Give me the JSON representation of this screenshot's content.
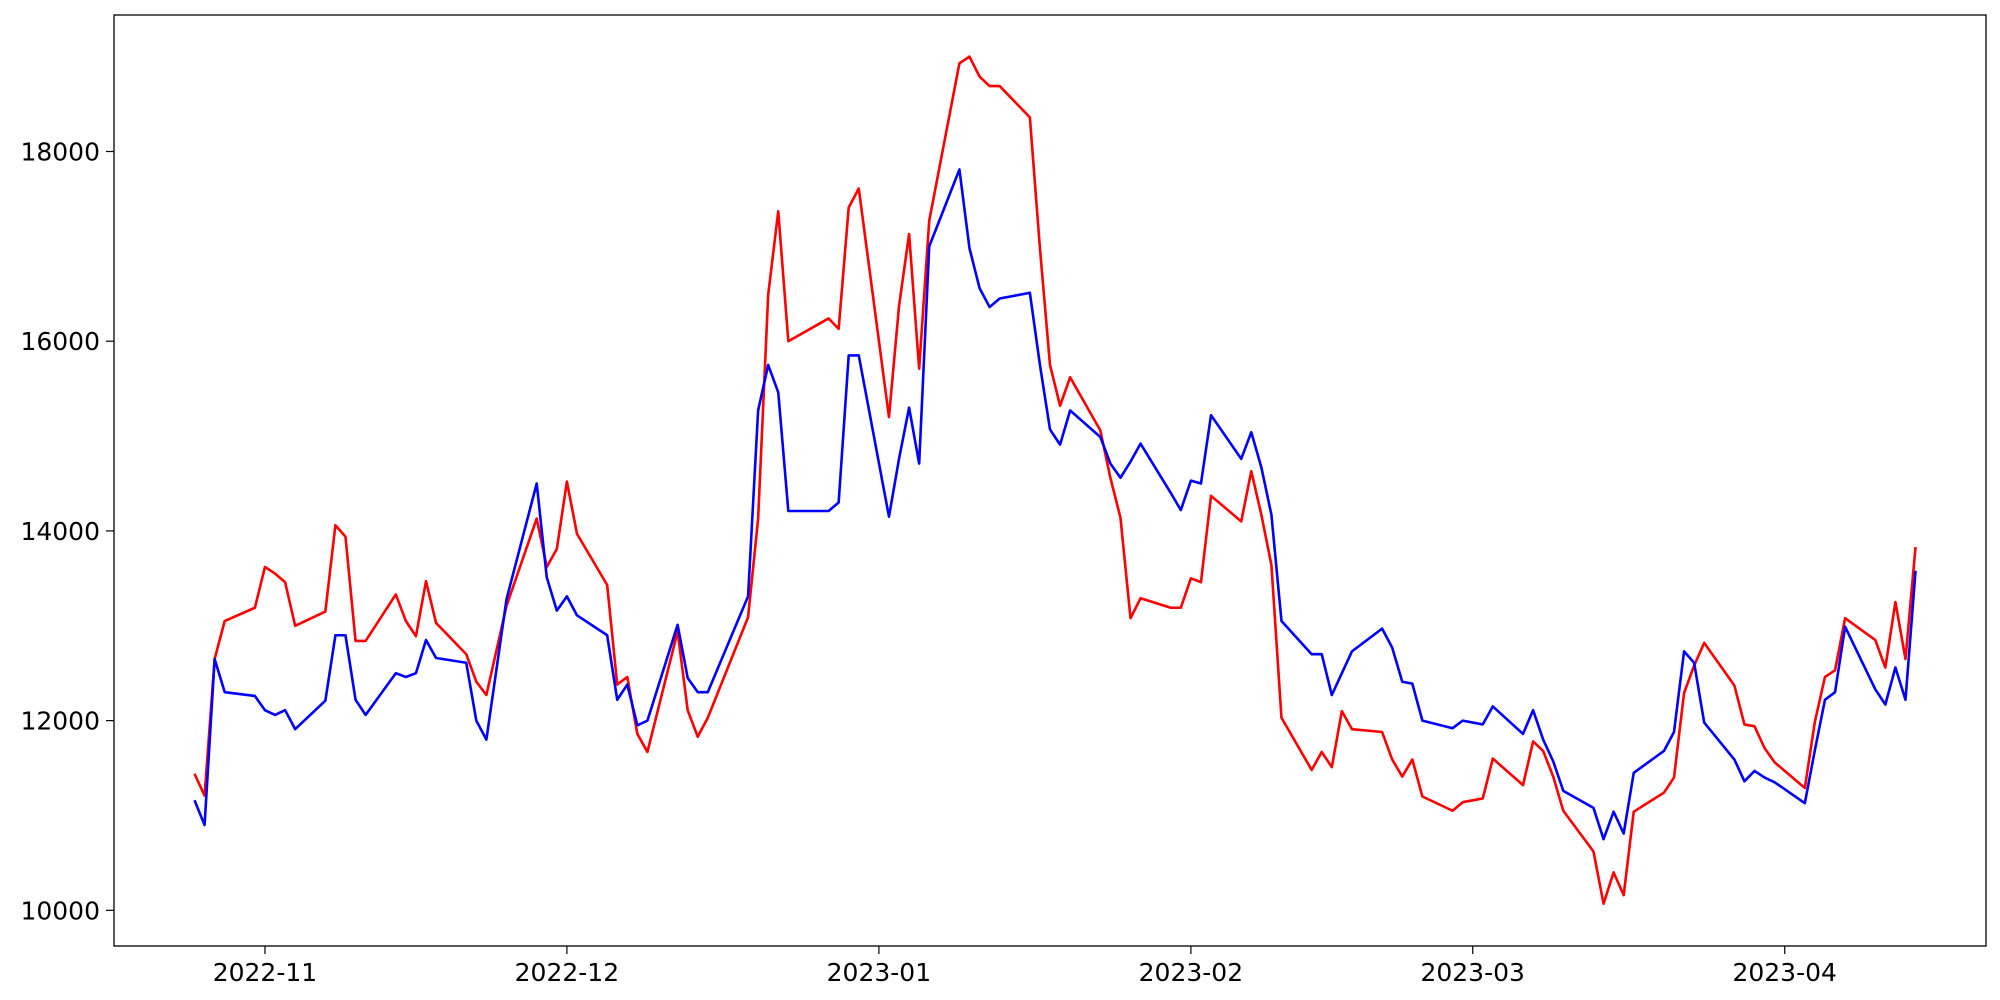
{
  "chart_data": {
    "type": "line",
    "x": [
      "2022-10-25",
      "2022-10-26",
      "2022-10-27",
      "2022-10-28",
      "2022-10-31",
      "2022-11-01",
      "2022-11-02",
      "2022-11-03",
      "2022-11-04",
      "2022-11-07",
      "2022-11-08",
      "2022-11-09",
      "2022-11-10",
      "2022-11-11",
      "2022-11-14",
      "2022-11-15",
      "2022-11-16",
      "2022-11-17",
      "2022-11-18",
      "2022-11-21",
      "2022-11-22",
      "2022-11-23",
      "2022-11-25",
      "2022-11-28",
      "2022-11-29",
      "2022-11-30",
      "2022-12-01",
      "2022-12-02",
      "2022-12-05",
      "2022-12-06",
      "2022-12-07",
      "2022-12-08",
      "2022-12-09",
      "2022-12-12",
      "2022-12-13",
      "2022-12-14",
      "2022-12-15",
      "2022-12-19",
      "2022-12-20",
      "2022-12-21",
      "2022-12-22",
      "2022-12-23",
      "2022-12-27",
      "2022-12-28",
      "2022-12-29",
      "2022-12-30",
      "2023-01-02",
      "2023-01-03",
      "2023-01-04",
      "2023-01-05",
      "2023-01-06",
      "2023-01-09",
      "2023-01-10",
      "2023-01-11",
      "2023-01-12",
      "2023-01-13",
      "2023-01-16",
      "2023-01-17",
      "2023-01-18",
      "2023-01-19",
      "2023-01-20",
      "2023-01-23",
      "2023-01-24",
      "2023-01-25",
      "2023-01-26",
      "2023-01-27",
      "2023-01-30",
      "2023-01-31",
      "2023-02-01",
      "2023-02-02",
      "2023-02-03",
      "2023-02-06",
      "2023-02-07",
      "2023-02-08",
      "2023-02-09",
      "2023-02-10",
      "2023-02-13",
      "2023-02-14",
      "2023-02-15",
      "2023-02-16",
      "2023-02-17",
      "2023-02-20",
      "2023-02-21",
      "2023-02-22",
      "2023-02-23",
      "2023-02-24",
      "2023-02-27",
      "2023-02-28",
      "2023-03-02",
      "2023-03-03",
      "2023-03-06",
      "2023-03-07",
      "2023-03-08",
      "2023-03-09",
      "2023-03-10",
      "2023-03-13",
      "2023-03-14",
      "2023-03-15",
      "2023-03-16",
      "2023-03-17",
      "2023-03-20",
      "2023-03-21",
      "2023-03-22",
      "2023-03-23",
      "2023-03-24",
      "2023-03-27",
      "2023-03-28",
      "2023-03-29",
      "2023-03-30",
      "2023-03-31",
      "2023-04-03",
      "2023-04-04",
      "2023-04-05",
      "2023-04-06",
      "2023-04-07",
      "2023-04-10",
      "2023-04-11",
      "2023-04-12",
      "2023-04-13",
      "2023-04-14"
    ],
    "series": [
      {
        "color": "#ff0000",
        "values": [
          11440,
          11210,
          12650,
          13050,
          13190,
          13620,
          13550,
          13460,
          13000,
          13150,
          14060,
          13940,
          12840,
          12840,
          13330,
          13050,
          12890,
          13470,
          13030,
          12700,
          12410,
          12270,
          13210,
          14130,
          13620,
          13810,
          14520,
          13970,
          13430,
          12380,
          12460,
          11860,
          11670,
          12940,
          12110,
          11830,
          12030,
          13090,
          14130,
          16490,
          17370,
          16000,
          16240,
          16130,
          17410,
          17610,
          15200,
          16370,
          17130,
          15710,
          17270,
          18930,
          19000,
          18790,
          18690,
          18690,
          18360,
          16980,
          15750,
          15320,
          15620,
          15060,
          14560,
          14140,
          13080,
          13290,
          13190,
          13190,
          13500,
          13460,
          14370,
          14100,
          14630,
          14170,
          13640,
          12030,
          11480,
          11670,
          11510,
          12100,
          11910,
          11880,
          11590,
          11410,
          11590,
          11200,
          11050,
          11140,
          11180,
          11600,
          11320,
          11780,
          11680,
          11410,
          11050,
          10620,
          10070,
          10400,
          10160,
          11040,
          11240,
          11400,
          12290,
          12580,
          12820,
          12370,
          11960,
          11940,
          11710,
          11560,
          11290,
          11990,
          12460,
          12530,
          13080,
          12850,
          12560,
          13250,
          12650,
          13830
        ]
      },
      {
        "color": "#0000ff",
        "values": [
          11160,
          10900,
          12650,
          12300,
          12260,
          12110,
          12060,
          12110,
          11910,
          12210,
          12900,
          12900,
          12220,
          12060,
          12500,
          12460,
          12500,
          12850,
          12660,
          12610,
          12000,
          11800,
          13280,
          14500,
          13510,
          13160,
          13310,
          13110,
          12900,
          12220,
          12380,
          11950,
          12000,
          13010,
          12450,
          12300,
          12300,
          13310,
          15270,
          15750,
          15460,
          14210,
          14210,
          14300,
          15850,
          15850,
          14150,
          14760,
          15300,
          14710,
          17000,
          17810,
          16980,
          16560,
          16360,
          16450,
          16510,
          15750,
          15070,
          14910,
          15270,
          14990,
          14710,
          14560,
          14730,
          14920,
          14400,
          14220,
          14530,
          14500,
          15220,
          14760,
          15040,
          14670,
          14170,
          13050,
          12700,
          12700,
          12270,
          12500,
          12730,
          12970,
          12770,
          12410,
          12390,
          12000,
          11920,
          12000,
          11960,
          12150,
          11860,
          12110,
          11800,
          11570,
          11260,
          11080,
          10750,
          11040,
          10810,
          11450,
          11680,
          11880,
          12730,
          12610,
          11980,
          11590,
          11360,
          11470,
          11400,
          11350,
          11130,
          11690,
          12220,
          12300,
          12990,
          12330,
          12170,
          12560,
          12220,
          13580
        ]
      }
    ],
    "xlim": [
      "2022-10-17",
      "2023-04-21"
    ],
    "xticks": [
      {
        "value": "2022-11-01",
        "label": "2022-11"
      },
      {
        "value": "2022-12-01",
        "label": "2022-12"
      },
      {
        "value": "2023-01-01",
        "label": "2023-01"
      },
      {
        "value": "2023-02-01",
        "label": "2023-02"
      },
      {
        "value": "2023-03-01",
        "label": "2023-03"
      },
      {
        "value": "2023-04-01",
        "label": "2023-04"
      }
    ],
    "ylim": [
      9624,
      19439
    ],
    "yticks": [
      10000,
      12000,
      14000,
      16000,
      18000
    ],
    "grid": false
  }
}
